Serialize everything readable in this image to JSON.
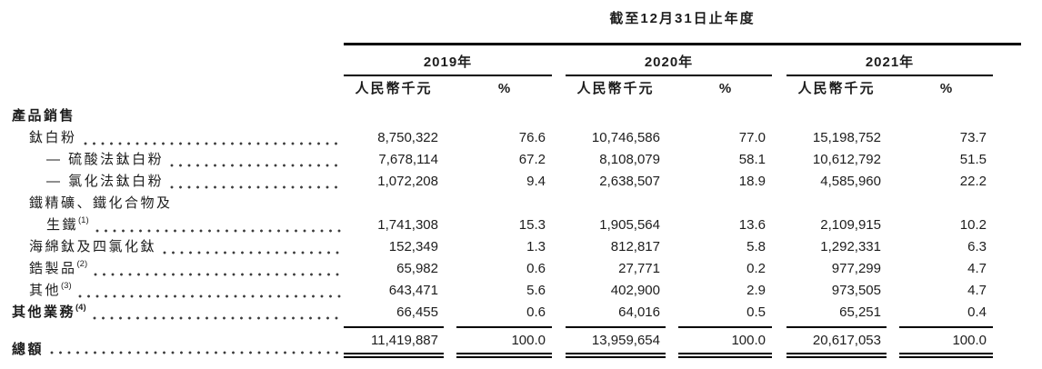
{
  "table": {
    "title": "截至12月31日止年度",
    "year_headers": [
      "2019年",
      "2020年",
      "2021年"
    ],
    "sub_headers": {
      "amount": "人民幣千元",
      "pct": "%"
    },
    "rows": [
      {
        "style": "section",
        "label": "產品銷售"
      },
      {
        "style": "item",
        "indent": 1,
        "leader": true,
        "label": "鈦白粉",
        "note": "",
        "values": [
          "8,750,322",
          "76.6",
          "10,746,586",
          "77.0",
          "15,198,752",
          "73.7"
        ]
      },
      {
        "style": "item",
        "indent": 2,
        "leader": true,
        "label": "— 硫酸法鈦白粉",
        "note": "",
        "values": [
          "7,678,114",
          "67.2",
          "8,108,079",
          "58.1",
          "10,612,792",
          "51.5"
        ]
      },
      {
        "style": "item",
        "indent": 2,
        "leader": true,
        "label": "— 氯化法鈦白粉",
        "note": "",
        "values": [
          "1,072,208",
          "9.4",
          "2,638,507",
          "18.9",
          "4,585,960",
          "22.2"
        ]
      },
      {
        "style": "item2",
        "indent": 1,
        "indent2": 2,
        "leader": true,
        "label_line1": "鐵精礦、鐵化合物及",
        "label": "生鐵",
        "note": "(1)",
        "values": [
          "1,741,308",
          "15.3",
          "1,905,564",
          "13.6",
          "2,109,915",
          "10.2"
        ]
      },
      {
        "style": "item",
        "indent": 1,
        "leader": true,
        "label": "海綿鈦及四氯化鈦",
        "note": "",
        "values": [
          "152,349",
          "1.3",
          "812,817",
          "5.8",
          "1,292,331",
          "6.3"
        ]
      },
      {
        "style": "item",
        "indent": 1,
        "leader": true,
        "label": "鋯製品",
        "note": "(2)",
        "values": [
          "65,982",
          "0.6",
          "27,771",
          "0.2",
          "977,299",
          "4.7"
        ]
      },
      {
        "style": "item",
        "indent": 1,
        "leader": true,
        "label": "其他",
        "note": "(3)",
        "values": [
          "643,471",
          "5.6",
          "402,900",
          "2.9",
          "973,505",
          "4.7"
        ]
      },
      {
        "style": "item",
        "indent": 0,
        "bold": true,
        "leader": true,
        "label": "其他業務",
        "note": "(4)",
        "values": [
          "66,455",
          "0.6",
          "64,016",
          "0.5",
          "65,251",
          "0.4"
        ]
      }
    ],
    "total": {
      "label": "總額",
      "note": "",
      "values": [
        "11,419,887",
        "100.0",
        "13,959,654",
        "100.0",
        "20,617,053",
        "100.0"
      ]
    }
  }
}
